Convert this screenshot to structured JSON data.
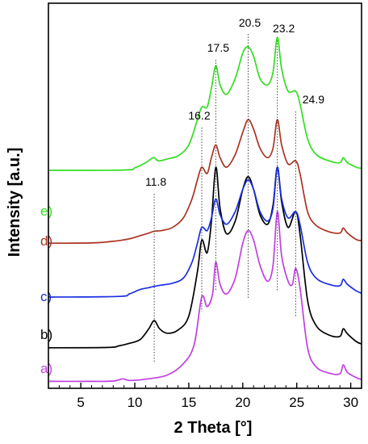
{
  "chart_data": {
    "type": "line",
    "title": "",
    "xlabel": "2 Theta [°]",
    "ylabel": "Intensity [a.u.]",
    "xlim": [
      2,
      31
    ],
    "xticks": [
      5,
      10,
      15,
      20,
      25,
      30
    ],
    "grid": false,
    "legend": "inline labels at left of each curve",
    "peak_labels": [
      {
        "text": "11.8",
        "x": 11.8
      },
      {
        "text": "16.2",
        "x": 16.2
      },
      {
        "text": "17.5",
        "x": 17.5
      },
      {
        "text": "20.5",
        "x": 20.5
      },
      {
        "text": "23.2",
        "x": 23.2
      },
      {
        "text": "24.9",
        "x": 24.9
      }
    ],
    "series": [
      {
        "label": "a)",
        "color": "#c040e0",
        "baseline": 0.0,
        "points": [
          [
            2,
            0.2
          ],
          [
            6,
            0.2
          ],
          [
            8,
            0.25
          ],
          [
            8.9,
            0.6
          ],
          [
            9.5,
            0.35
          ],
          [
            11,
            0.55
          ],
          [
            13,
            1.2
          ],
          [
            14.5,
            3.0
          ],
          [
            15.5,
            6.0
          ],
          [
            16.2,
            13.5
          ],
          [
            16.7,
            12.0
          ],
          [
            17.2,
            14.0
          ],
          [
            17.5,
            19.0
          ],
          [
            17.9,
            15.5
          ],
          [
            18.5,
            14.0
          ],
          [
            19.3,
            16.5
          ],
          [
            20.0,
            22.0
          ],
          [
            20.5,
            24.0
          ],
          [
            21.0,
            22.5
          ],
          [
            21.6,
            18.5
          ],
          [
            22.3,
            16.0
          ],
          [
            22.8,
            18.5
          ],
          [
            23.2,
            27.0
          ],
          [
            23.6,
            20.0
          ],
          [
            24.2,
            16.0
          ],
          [
            24.6,
            15.5
          ],
          [
            24.9,
            18.0
          ],
          [
            25.3,
            15.0
          ],
          [
            26.0,
            5.5
          ],
          [
            26.8,
            2.5
          ],
          [
            28.0,
            1.5
          ],
          [
            29.0,
            1.4
          ],
          [
            29.3,
            2.8
          ],
          [
            29.7,
            1.6
          ],
          [
            30.5,
            0.8
          ],
          [
            31,
            0.5
          ]
        ]
      },
      {
        "label": "b)",
        "color": "#000000",
        "baseline": 5.5,
        "points": [
          [
            2,
            0.0
          ],
          [
            7.5,
            0.05
          ],
          [
            8.5,
            0.3
          ],
          [
            9.5,
            0.7
          ],
          [
            10.5,
            1.3
          ],
          [
            11.3,
            3.0
          ],
          [
            11.8,
            4.3
          ],
          [
            12.3,
            3.0
          ],
          [
            13.0,
            2.3
          ],
          [
            14.0,
            2.8
          ],
          [
            15.0,
            5.0
          ],
          [
            15.8,
            12.0
          ],
          [
            16.2,
            17.0
          ],
          [
            16.7,
            15.0
          ],
          [
            17.1,
            20.0
          ],
          [
            17.5,
            28.5
          ],
          [
            17.9,
            22.0
          ],
          [
            18.5,
            18.0
          ],
          [
            19.3,
            20.0
          ],
          [
            20.0,
            25.0
          ],
          [
            20.5,
            27.0
          ],
          [
            21.0,
            25.0
          ],
          [
            21.6,
            21.0
          ],
          [
            22.3,
            19.5
          ],
          [
            22.8,
            22.5
          ],
          [
            23.2,
            28.5
          ],
          [
            23.6,
            23.0
          ],
          [
            24.2,
            19.0
          ],
          [
            24.9,
            21.5
          ],
          [
            25.3,
            18.0
          ],
          [
            26.0,
            7.5
          ],
          [
            26.8,
            3.5
          ],
          [
            28.0,
            2.0
          ],
          [
            29.0,
            1.8
          ],
          [
            29.3,
            3.0
          ],
          [
            29.7,
            2.2
          ],
          [
            30.5,
            1.0
          ],
          [
            31,
            0.6
          ]
        ]
      },
      {
        "label": "c)",
        "color": "#1a2ee0",
        "baseline": 13.5,
        "points": [
          [
            2,
            0.0
          ],
          [
            8.5,
            0.1
          ],
          [
            9.5,
            0.5
          ],
          [
            10.5,
            1.2
          ],
          [
            11.3,
            1.5
          ],
          [
            11.8,
            1.7
          ],
          [
            12.5,
            1.9
          ],
          [
            13.5,
            2.2
          ],
          [
            14.5,
            3.0
          ],
          [
            15.3,
            5.5
          ],
          [
            15.8,
            8.5
          ],
          [
            16.2,
            11.0
          ],
          [
            16.7,
            10.5
          ],
          [
            17.1,
            12.5
          ],
          [
            17.5,
            15.5
          ],
          [
            17.9,
            13.0
          ],
          [
            18.5,
            11.5
          ],
          [
            19.3,
            13.5
          ],
          [
            20.0,
            17.0
          ],
          [
            20.5,
            18.5
          ],
          [
            21.0,
            17.0
          ],
          [
            21.6,
            13.5
          ],
          [
            22.3,
            12.0
          ],
          [
            22.8,
            14.0
          ],
          [
            23.2,
            20.5
          ],
          [
            23.6,
            15.5
          ],
          [
            24.2,
            12.5
          ],
          [
            24.9,
            13.5
          ],
          [
            25.3,
            11.5
          ],
          [
            26.0,
            5.5
          ],
          [
            26.8,
            3.0
          ],
          [
            28.0,
            2.0
          ],
          [
            29.0,
            1.8
          ],
          [
            29.3,
            2.8
          ],
          [
            29.7,
            2.0
          ],
          [
            30.5,
            1.0
          ],
          [
            31,
            0.6
          ]
        ]
      },
      {
        "label": "d)",
        "color": "#aa3322",
        "baseline": 22.0,
        "points": [
          [
            2,
            0.0
          ],
          [
            6,
            0.05
          ],
          [
            8,
            0.3
          ],
          [
            9.5,
            0.7
          ],
          [
            10.5,
            1.2
          ],
          [
            11.3,
            1.6
          ],
          [
            11.8,
            1.9
          ],
          [
            12.5,
            2.0
          ],
          [
            13.5,
            2.5
          ],
          [
            14.5,
            4.0
          ],
          [
            15.3,
            7.0
          ],
          [
            15.8,
            10.0
          ],
          [
            16.2,
            12.0
          ],
          [
            16.7,
            11.0
          ],
          [
            17.1,
            13.5
          ],
          [
            17.5,
            15.5
          ],
          [
            17.9,
            13.5
          ],
          [
            18.5,
            12.0
          ],
          [
            19.3,
            14.0
          ],
          [
            20.0,
            17.5
          ],
          [
            20.5,
            19.5
          ],
          [
            21.0,
            18.0
          ],
          [
            21.6,
            15.0
          ],
          [
            22.3,
            13.5
          ],
          [
            22.8,
            15.0
          ],
          [
            23.2,
            19.5
          ],
          [
            23.6,
            15.5
          ],
          [
            24.2,
            12.5
          ],
          [
            24.9,
            13.0
          ],
          [
            25.3,
            11.0
          ],
          [
            26.0,
            5.0
          ],
          [
            26.8,
            2.8
          ],
          [
            28.0,
            1.8
          ],
          [
            29.0,
            1.6
          ],
          [
            29.3,
            2.4
          ],
          [
            29.7,
            1.6
          ],
          [
            30.5,
            0.6
          ],
          [
            31,
            0.4
          ]
        ]
      },
      {
        "label": "e)",
        "color": "#33dd22",
        "baseline": 33.5,
        "points": [
          [
            2,
            0.0
          ],
          [
            9,
            0.05
          ],
          [
            10,
            0.4
          ],
          [
            11.0,
            1.2
          ],
          [
            11.5,
            1.8
          ],
          [
            11.8,
            2.0
          ],
          [
            12.2,
            1.5
          ],
          [
            13.0,
            1.8
          ],
          [
            14.0,
            2.3
          ],
          [
            15.0,
            4.0
          ],
          [
            15.8,
            8.0
          ],
          [
            16.2,
            10.0
          ],
          [
            16.7,
            10.0
          ],
          [
            17.1,
            13.0
          ],
          [
            17.5,
            16.5
          ],
          [
            17.9,
            13.5
          ],
          [
            18.5,
            12.0
          ],
          [
            19.3,
            14.5
          ],
          [
            20.0,
            18.5
          ],
          [
            20.5,
            19.5
          ],
          [
            21.0,
            18.0
          ],
          [
            21.6,
            14.5
          ],
          [
            22.3,
            13.5
          ],
          [
            22.8,
            15.5
          ],
          [
            23.2,
            21.0
          ],
          [
            23.6,
            16.0
          ],
          [
            24.2,
            12.5
          ],
          [
            24.9,
            12.5
          ],
          [
            25.3,
            10.5
          ],
          [
            26.0,
            5.0
          ],
          [
            26.8,
            2.5
          ],
          [
            28.0,
            1.5
          ],
          [
            29.0,
            1.2
          ],
          [
            29.3,
            2.0
          ],
          [
            29.7,
            1.2
          ],
          [
            30.5,
            0.5
          ],
          [
            31,
            0.3
          ]
        ]
      }
    ]
  }
}
